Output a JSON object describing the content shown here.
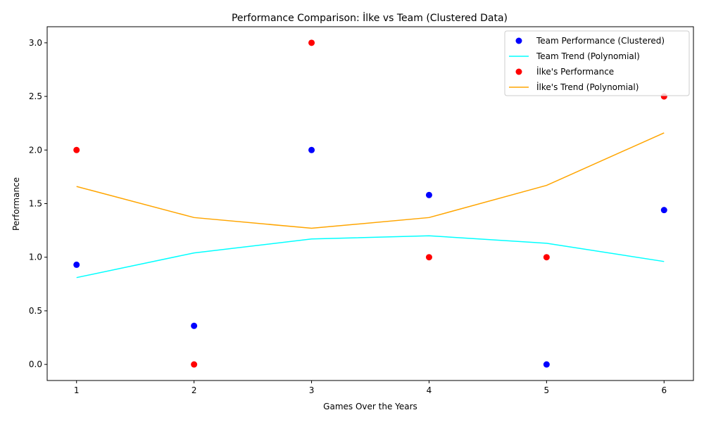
{
  "chart_data": {
    "type": "scatter",
    "title": "Performance Comparison: İlke vs Team (Clustered Data)",
    "xlabel": "Games Over the Years",
    "ylabel": "Performance",
    "xlim": [
      0.75,
      6.25
    ],
    "ylim": [
      -0.15,
      3.15
    ],
    "x_ticks": [
      "1",
      "2",
      "3",
      "4",
      "5",
      "6"
    ],
    "y_ticks": [
      "0.0",
      "0.5",
      "1.0",
      "1.5",
      "2.0",
      "2.5",
      "3.0"
    ],
    "grid": false,
    "legend_position": "top-right",
    "series": [
      {
        "name": "Team Performance (Clustered)",
        "kind": "scatter",
        "color": "#0000ff",
        "x": [
          1,
          2,
          3,
          4,
          5,
          6
        ],
        "y": [
          0.93,
          0.36,
          2.0,
          1.58,
          0.0,
          1.44
        ]
      },
      {
        "name": "Team Trend (Polynomial)",
        "kind": "line",
        "color": "#00ffff",
        "x": [
          1,
          2,
          3,
          4,
          5,
          6
        ],
        "y": [
          0.81,
          1.04,
          1.17,
          1.2,
          1.13,
          0.96
        ]
      },
      {
        "name": "İlke's Performance",
        "kind": "scatter",
        "color": "#ff0000",
        "x": [
          1,
          2,
          3,
          4,
          5,
          6
        ],
        "y": [
          2.0,
          0.0,
          3.0,
          1.0,
          1.0,
          2.5
        ]
      },
      {
        "name": "İlke's Trend (Polynomial)",
        "kind": "line",
        "color": "#ffa500",
        "x": [
          1,
          2,
          3,
          4,
          5,
          6
        ],
        "y": [
          1.66,
          1.37,
          1.27,
          1.37,
          1.67,
          2.16
        ]
      }
    ]
  }
}
